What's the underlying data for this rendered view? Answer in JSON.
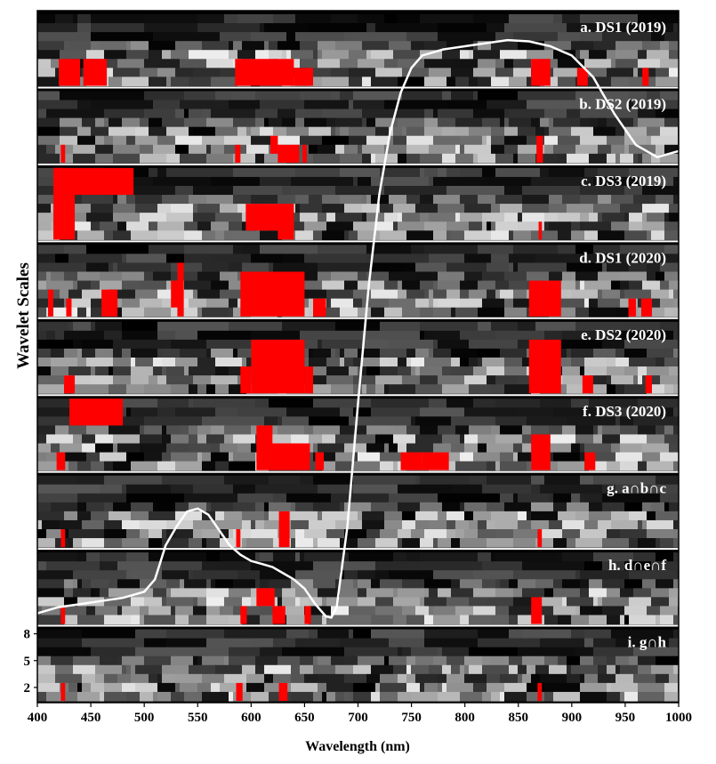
{
  "chart_data": {
    "type": "heatmap",
    "title": "",
    "xlabel": "Wavelength (nm)",
    "ylabel": "Wavelet Scales",
    "xlim": [
      400,
      1000
    ],
    "x_ticks": [
      "400",
      "450",
      "500",
      "550",
      "600",
      "650",
      "700",
      "750",
      "800",
      "850",
      "900",
      "950",
      "1000"
    ],
    "y_ticks": [
      "2",
      "5",
      "8"
    ],
    "colors": {
      "background": "#000000",
      "significant": "#ff0000",
      "curve": "#ffffff",
      "separator": "#ffffff"
    },
    "panels": [
      {
        "label": "a. DS1 (2019)",
        "red_regions": [
          [
            420,
            440,
            1,
            3
          ],
          [
            443,
            465,
            1,
            3
          ],
          [
            585,
            640,
            1,
            3
          ],
          [
            640,
            658,
            1,
            2
          ],
          [
            862,
            880,
            1,
            3
          ],
          [
            905,
            915,
            1,
            2
          ],
          [
            966,
            972,
            1,
            2
          ]
        ]
      },
      {
        "label": "b. DS2 (2019)",
        "red_regions": [
          [
            422,
            426,
            1,
            2
          ],
          [
            585,
            590,
            1,
            2
          ],
          [
            618,
            625,
            2,
            3
          ],
          [
            625,
            645,
            1,
            2
          ],
          [
            648,
            652,
            1,
            2
          ],
          [
            867,
            873,
            1,
            3
          ]
        ]
      },
      {
        "label": "c. DS3 (2019)",
        "red_regions": [
          [
            415,
            490,
            6,
            8
          ],
          [
            415,
            425,
            1,
            8
          ],
          [
            425,
            435,
            1,
            5
          ],
          [
            595,
            640,
            2,
            4
          ],
          [
            625,
            640,
            1,
            2
          ],
          [
            869,
            872,
            1,
            2
          ]
        ]
      },
      {
        "label": "d. DS1 (2020)",
        "red_regions": [
          [
            410,
            415,
            1,
            3
          ],
          [
            427,
            432,
            1,
            2
          ],
          [
            460,
            475,
            1,
            3
          ],
          [
            525,
            535,
            2,
            4
          ],
          [
            531,
            537,
            1,
            6
          ],
          [
            590,
            650,
            1,
            5
          ],
          [
            658,
            670,
            1,
            2
          ],
          [
            860,
            890,
            1,
            4
          ],
          [
            953,
            960,
            1,
            2
          ],
          [
            965,
            975,
            1,
            2
          ]
        ]
      },
      {
        "label": "e. DS2 (2020)",
        "red_regions": [
          [
            425,
            435,
            1,
            2
          ],
          [
            590,
            600,
            1,
            3
          ],
          [
            600,
            650,
            1,
            6
          ],
          [
            650,
            658,
            1,
            3
          ],
          [
            860,
            890,
            1,
            6
          ],
          [
            910,
            920,
            1,
            2
          ],
          [
            969,
            975,
            1,
            2
          ]
        ]
      },
      {
        "label": "f. DS3 (2020)",
        "red_regions": [
          [
            430,
            480,
            6,
            8
          ],
          [
            418,
            426,
            1,
            2
          ],
          [
            605,
            620,
            3,
            5
          ],
          [
            605,
            655,
            1,
            3
          ],
          [
            660,
            668,
            1,
            2
          ],
          [
            740,
            760,
            1,
            2
          ],
          [
            760,
            785,
            1,
            2
          ],
          [
            862,
            880,
            1,
            4
          ],
          [
            912,
            922,
            1,
            2
          ]
        ]
      },
      {
        "label": "g. a∩b∩c",
        "red_regions": [
          [
            422,
            426,
            1,
            2
          ],
          [
            586,
            590,
            1,
            2
          ],
          [
            626,
            636,
            1,
            4
          ],
          [
            868,
            872,
            1,
            2
          ]
        ]
      },
      {
        "label": "h. d∩e∩f",
        "red_regions": [
          [
            422,
            426,
            1,
            2
          ],
          [
            590,
            596,
            1,
            2
          ],
          [
            605,
            622,
            3,
            4
          ],
          [
            620,
            632,
            1,
            2
          ],
          [
            650,
            656,
            1,
            2
          ],
          [
            862,
            872,
            1,
            3
          ]
        ]
      },
      {
        "label": "i. g∩h",
        "red_regions": [
          [
            422,
            426,
            1,
            2
          ],
          [
            586,
            592,
            1,
            2
          ],
          [
            626,
            634,
            1,
            2
          ],
          [
            868,
            872,
            1,
            2
          ]
        ]
      }
    ],
    "reflectance_curve": {
      "description_units": "relative, plotted across all panels",
      "x": [
        400,
        420,
        440,
        460,
        480,
        490,
        500,
        510,
        520,
        530,
        540,
        550,
        560,
        570,
        580,
        590,
        600,
        610,
        620,
        630,
        640,
        650,
        660,
        670,
        675,
        680,
        690,
        700,
        710,
        720,
        730,
        740,
        750,
        760,
        780,
        800,
        820,
        840,
        860,
        880,
        900,
        920,
        940,
        960,
        980,
        1000
      ],
      "y": [
        0.08,
        0.09,
        0.095,
        0.1,
        0.105,
        0.11,
        0.115,
        0.135,
        0.19,
        0.22,
        0.245,
        0.25,
        0.24,
        0.215,
        0.19,
        0.175,
        0.165,
        0.16,
        0.155,
        0.145,
        0.135,
        0.12,
        0.095,
        0.075,
        0.073,
        0.09,
        0.22,
        0.42,
        0.61,
        0.76,
        0.86,
        0.925,
        0.965,
        0.985,
        0.995,
        1.0,
        1.005,
        1.01,
        1.008,
        1.0,
        0.985,
        0.95,
        0.89,
        0.84,
        0.82,
        0.83
      ]
    }
  }
}
